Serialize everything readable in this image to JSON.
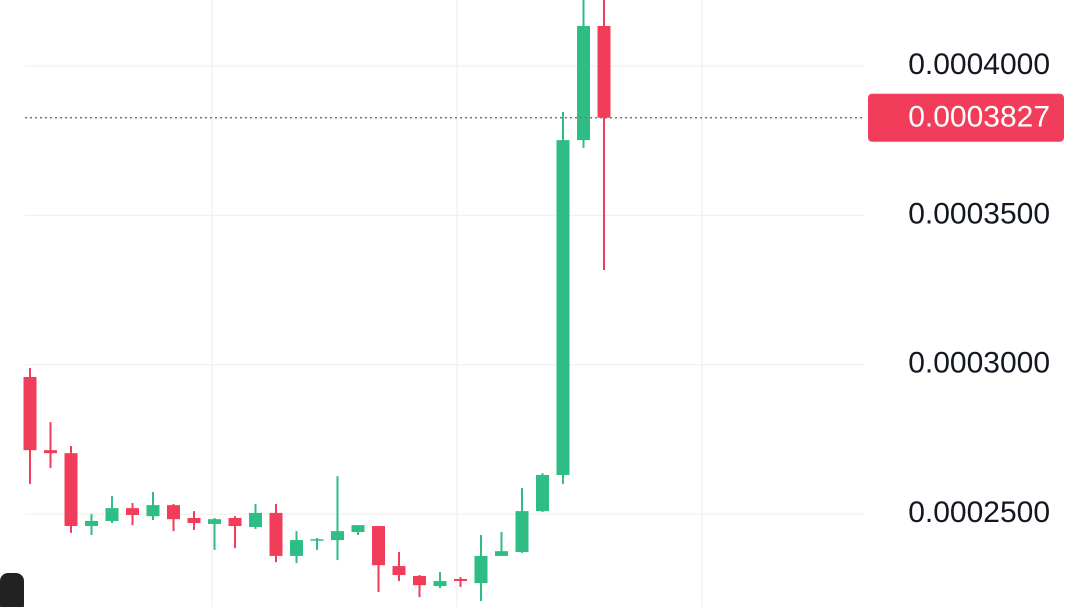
{
  "chart_data": {
    "type": "candlestick",
    "up_color": "#2ebd85",
    "down_color": "#f23d5a",
    "grid": true,
    "ylim": [
      0.0002189,
      0.0004221
    ],
    "yticks": [
      {
        "value": 0.00025,
        "label": "0.0002500"
      },
      {
        "value": 0.0003,
        "label": "0.0003000"
      },
      {
        "value": 0.00035,
        "label": "0.0003500"
      },
      {
        "value": 0.0004,
        "label": "0.0004000"
      }
    ],
    "current_price": {
      "value": 0.0003827,
      "label": "0.0003827"
    },
    "open": [
      0.0002959,
      0.0002714,
      0.0002704,
      0.000246,
      0.0002477,
      0.000252,
      0.0002493,
      0.000253,
      0.0002487,
      0.0002467,
      0.0002487,
      0.0002457,
      0.0002504,
      0.000236,
      0.0002413,
      0.0002413,
      0.000244,
      0.000246,
      0.0002326,
      0.0002293,
      0.0002259,
      0.0002283,
      0.0002269,
      0.000236,
      0.0002373,
      0.000251,
      0.0002631,
      0.0003752,
      0.0004134
    ],
    "high": [
      0.0002989,
      0.0002808,
      0.0002728,
      0.00025,
      0.000256,
      0.0002537,
      0.0002574,
      0.0002534,
      0.000251,
      0.0002487,
      0.0002493,
      0.0002534,
      0.0002534,
      0.0002443,
      0.000242,
      0.0002627,
      0.0002463,
      0.000246,
      0.0002373,
      0.0002296,
      0.0002306,
      0.0002289,
      0.000243,
      0.000244,
      0.0002587,
      0.0002637,
      0.0003846,
      0.0004221,
      0.0004221
    ],
    "low": [
      0.0002601,
      0.0002654,
      0.0002437,
      0.000243,
      0.000247,
      0.0002463,
      0.000248,
      0.0002443,
      0.0002447,
      0.000238,
      0.0002386,
      0.000245,
      0.0002339,
      0.0002336,
      0.000238,
      0.0002346,
      0.000243,
      0.0002239,
      0.0002276,
      0.0002222,
      0.0002252,
      0.0002256,
      0.0002209,
      0.000236,
      0.000237,
      0.0002507,
      0.0002601,
      0.0003726,
      0.0003317
    ],
    "close": [
      0.0002714,
      0.0002704,
      0.000246,
      0.0002477,
      0.000252,
      0.0002497,
      0.000253,
      0.0002483,
      0.000247,
      0.0002483,
      0.000246,
      0.0002504,
      0.000236,
      0.0002413,
      0.0002416,
      0.0002443,
      0.0002463,
      0.0002329,
      0.0002296,
      0.0002262,
      0.0002276,
      0.0002276,
      0.000236,
      0.0002376,
      0.000251,
      0.0002631,
      0.0003752,
      0.0004134,
      0.0003827
    ]
  }
}
